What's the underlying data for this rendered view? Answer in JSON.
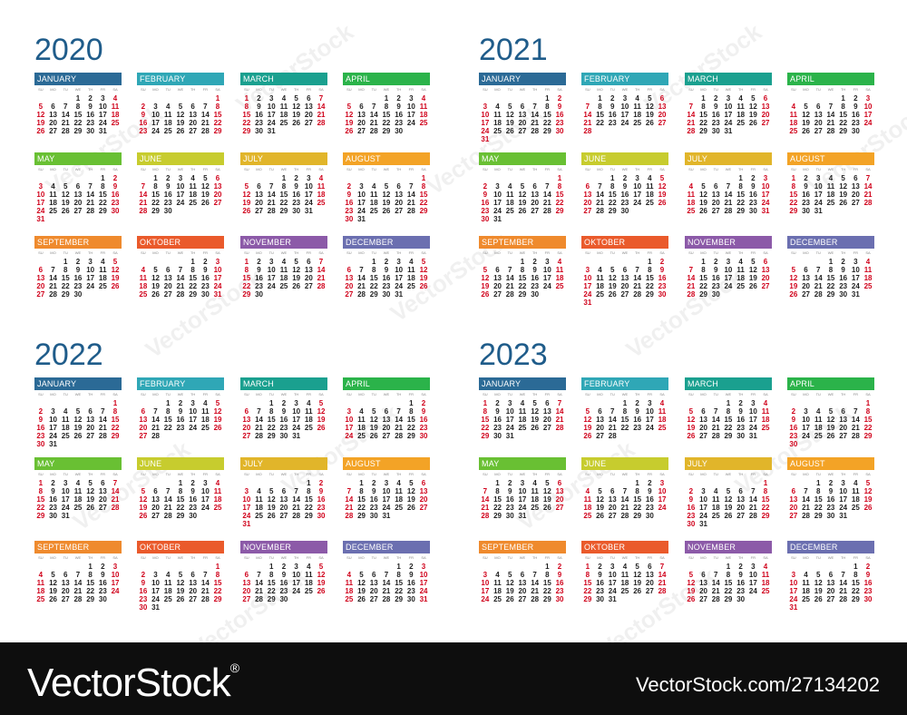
{
  "weekdays": [
    "SU",
    "MO",
    "TU",
    "WE",
    "TH",
    "FR",
    "SA"
  ],
  "months": [
    "JANUARY",
    "FEBRUARY",
    "MARCH",
    "APRIL",
    "MAY",
    "JUNE",
    "JULY",
    "AUGUST",
    "SEPTEMBER",
    "OKTOBER",
    "NOVEMBER",
    "DECEMBER"
  ],
  "month_colors": [
    "#2b6a96",
    "#2fa7b6",
    "#1aa08f",
    "#2bb34a",
    "#69c033",
    "#c7cc2e",
    "#e1b52a",
    "#f3a326",
    "#ef8a2d",
    "#ea5a2b",
    "#8c5aa8",
    "#6b6fb0"
  ],
  "year_title_color": "#1f5c8a",
  "weekend_color": "#d0021b",
  "years": [
    {
      "year": "2020",
      "month_days": [
        31,
        29,
        31,
        30,
        31,
        30,
        31,
        31,
        30,
        31,
        30,
        31
      ]
    },
    {
      "year": "2021",
      "month_days": [
        31,
        28,
        31,
        30,
        31,
        30,
        31,
        31,
        30,
        31,
        30,
        31
      ]
    },
    {
      "year": "2022",
      "month_days": [
        31,
        28,
        31,
        30,
        31,
        30,
        31,
        31,
        30,
        31,
        30,
        31
      ]
    },
    {
      "year": "2023",
      "month_days": [
        31,
        28,
        31,
        30,
        31,
        30,
        31,
        31,
        30,
        31,
        30,
        31
      ]
    }
  ],
  "watermark_text": "VectorStock",
  "footer": {
    "logo": "VectorStock",
    "registered": "®",
    "image_id": "VectorStock.com/27134202"
  }
}
